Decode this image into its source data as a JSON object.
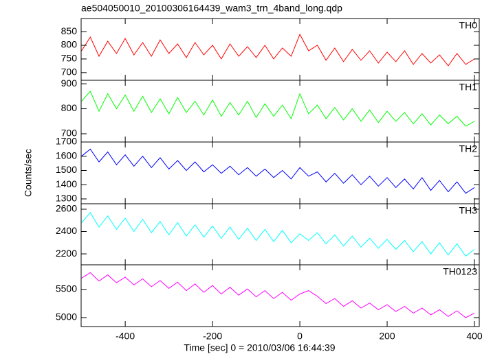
{
  "chart_data": [
    {
      "type": "line",
      "title": "ae504050010_20100306164439_wam3_trn_4band_long.qdp",
      "label": "TH0",
      "color": "#ff0000",
      "x": [
        -500,
        -480,
        -460,
        -440,
        -420,
        -400,
        -380,
        -360,
        -340,
        -320,
        -300,
        -280,
        -260,
        -240,
        -220,
        -200,
        -180,
        -160,
        -140,
        -120,
        -100,
        -80,
        -60,
        -40,
        -20,
        0,
        20,
        40,
        60,
        80,
        100,
        120,
        140,
        160,
        180,
        200,
        220,
        240,
        260,
        280,
        300,
        320,
        340,
        360,
        380,
        400
      ],
      "values": [
        780,
        830,
        760,
        815,
        770,
        825,
        765,
        810,
        760,
        820,
        770,
        805,
        755,
        810,
        765,
        800,
        750,
        805,
        760,
        795,
        755,
        800,
        750,
        790,
        760,
        840,
        780,
        800,
        745,
        790,
        740,
        785,
        745,
        780,
        735,
        775,
        740,
        780,
        730,
        770,
        735,
        765,
        725,
        770,
        730,
        750
      ],
      "xlim": [
        -501,
        411
      ],
      "xticks": [
        -400,
        -200,
        0,
        200,
        400
      ],
      "ylim": [
        672,
        898
      ],
      "yticks": [
        700,
        750,
        800,
        850
      ]
    },
    {
      "type": "line",
      "label": "TH1",
      "color": "#00ff00",
      "x": [
        -500,
        -480,
        -460,
        -440,
        -420,
        -400,
        -380,
        -360,
        -340,
        -320,
        -300,
        -280,
        -260,
        -240,
        -220,
        -200,
        -180,
        -160,
        -140,
        -120,
        -100,
        -80,
        -60,
        -40,
        -20,
        0,
        20,
        40,
        60,
        80,
        100,
        120,
        140,
        160,
        180,
        200,
        220,
        240,
        260,
        280,
        300,
        320,
        340,
        360,
        380,
        400
      ],
      "values": [
        830,
        870,
        790,
        860,
        800,
        855,
        790,
        850,
        785,
        840,
        780,
        845,
        785,
        830,
        775,
        835,
        770,
        825,
        775,
        830,
        765,
        820,
        770,
        815,
        760,
        860,
        780,
        815,
        760,
        805,
        755,
        800,
        750,
        795,
        745,
        790,
        750,
        785,
        740,
        780,
        735,
        775,
        740,
        770,
        730,
        750
      ],
      "xlim": [
        -501,
        411
      ],
      "xticks": [
        -400,
        -200,
        0,
        200,
        400
      ],
      "ylim": [
        667,
        914
      ],
      "yticks": [
        700,
        800,
        900
      ]
    },
    {
      "type": "line",
      "label": "TH2",
      "color": "#0000ff",
      "y_label": "Counts/sec",
      "x": [
        -500,
        -480,
        -460,
        -440,
        -420,
        -400,
        -380,
        -360,
        -340,
        -320,
        -300,
        -280,
        -260,
        -240,
        -220,
        -200,
        -180,
        -160,
        -140,
        -120,
        -100,
        -80,
        -60,
        -40,
        -20,
        0,
        20,
        40,
        60,
        80,
        100,
        120,
        140,
        160,
        180,
        200,
        220,
        240,
        260,
        280,
        300,
        320,
        340,
        360,
        380,
        400
      ],
      "values": [
        1600,
        1650,
        1560,
        1630,
        1540,
        1610,
        1530,
        1600,
        1520,
        1590,
        1510,
        1570,
        1500,
        1560,
        1490,
        1540,
        1480,
        1530,
        1470,
        1520,
        1460,
        1510,
        1450,
        1500,
        1440,
        1520,
        1460,
        1490,
        1420,
        1480,
        1410,
        1470,
        1400,
        1460,
        1390,
        1450,
        1380,
        1440,
        1370,
        1450,
        1360,
        1430,
        1350,
        1420,
        1340,
        1380
      ],
      "xlim": [
        -501,
        411
      ],
      "xticks": [
        -400,
        -200,
        0,
        200,
        400
      ],
      "ylim": [
        1266,
        1700
      ],
      "yticks": [
        1300,
        1400,
        1500,
        1600,
        1700
      ]
    },
    {
      "type": "line",
      "label": "TH3",
      "color": "#00ffff",
      "x": [
        -500,
        -480,
        -460,
        -440,
        -420,
        -400,
        -380,
        -360,
        -340,
        -320,
        -300,
        -280,
        -260,
        -240,
        -220,
        -200,
        -180,
        -160,
        -140,
        -120,
        -100,
        -80,
        -60,
        -40,
        -20,
        0,
        20,
        40,
        60,
        80,
        100,
        120,
        140,
        160,
        180,
        200,
        220,
        240,
        260,
        280,
        300,
        320,
        340,
        360,
        380,
        400
      ],
      "values": [
        2480,
        2570,
        2440,
        2540,
        2420,
        2520,
        2400,
        2510,
        2390,
        2490,
        2370,
        2480,
        2360,
        2460,
        2350,
        2450,
        2340,
        2440,
        2330,
        2430,
        2320,
        2420,
        2310,
        2410,
        2300,
        2380,
        2320,
        2390,
        2290,
        2370,
        2270,
        2360,
        2260,
        2340,
        2250,
        2330,
        2240,
        2320,
        2220,
        2310,
        2200,
        2300,
        2190,
        2290,
        2180,
        2240
      ],
      "xlim": [
        -501,
        411
      ],
      "xticks": [
        -400,
        -200,
        0,
        200,
        400
      ],
      "ylim": [
        2102,
        2649
      ],
      "yticks": [
        2200,
        2400,
        2600
      ]
    },
    {
      "type": "line",
      "label": "TH0123",
      "color": "#ff00ff",
      "x_label": "Time [sec] 0 = 2010/03/06 16:44:39",
      "x": [
        -500,
        -480,
        -460,
        -440,
        -420,
        -400,
        -380,
        -360,
        -340,
        -320,
        -300,
        -280,
        -260,
        -240,
        -220,
        -200,
        -180,
        -160,
        -140,
        -120,
        -100,
        -80,
        -60,
        -40,
        -20,
        0,
        20,
        40,
        60,
        80,
        100,
        120,
        140,
        160,
        180,
        200,
        220,
        240,
        260,
        280,
        300,
        320,
        340,
        360,
        380,
        400
      ],
      "values": [
        5700,
        5800,
        5650,
        5760,
        5620,
        5720,
        5580,
        5690,
        5550,
        5660,
        5520,
        5630,
        5480,
        5600,
        5450,
        5570,
        5420,
        5540,
        5400,
        5510,
        5370,
        5480,
        5340,
        5450,
        5310,
        5420,
        5480,
        5380,
        5250,
        5340,
        5200,
        5300,
        5170,
        5260,
        5140,
        5230,
        5110,
        5200,
        5080,
        5170,
        5050,
        5140,
        5020,
        5120,
        5000,
        5080
      ],
      "xlim": [
        -501,
        411
      ],
      "xticks": [
        -400,
        -200,
        0,
        200,
        400
      ],
      "ylim": [
        4841,
        5939
      ],
      "yticks": [
        5000,
        5500
      ]
    }
  ]
}
